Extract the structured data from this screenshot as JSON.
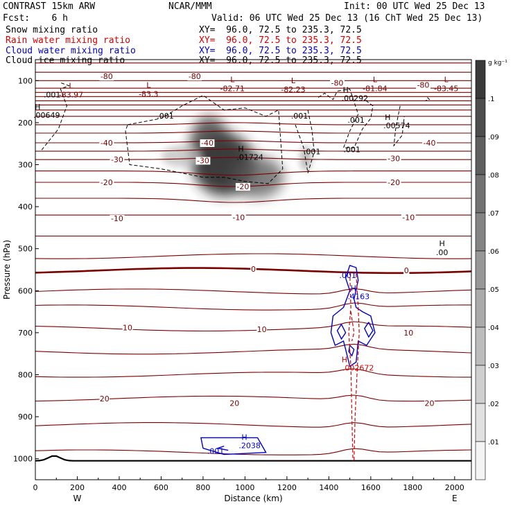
{
  "header": {
    "model": "CONTRAST 15km ARW",
    "org": "NCAR/MMM",
    "init": "Init: 00 UTC Wed 25 Dec 13",
    "fcst": "Fcst:    6 h",
    "valid": "Valid: 06 UTC Wed 25 Dec 13 (16 ChT Wed 25 Dec 13)",
    "fields": [
      {
        "name": "Snow mixing ratio",
        "xy": "XY=  96.0, 72.5 to 235.3, 72.5",
        "color": "#000000"
      },
      {
        "name": "Rain water mixing ratio",
        "xy": "XY=  96.0, 72.5 to 235.3, 72.5",
        "color": "#d80000"
      },
      {
        "name": "Cloud water mixing ratio",
        "xy": "XY=  96.0, 72.5 to 235.3, 72.5",
        "color": "#0000cc"
      },
      {
        "name": "Cloud ice mixing ratio",
        "xy": "XY=  96.0, 72.5 to 235.3, 72.5",
        "color": "#000000"
      }
    ]
  },
  "chart_data": {
    "type": "contour",
    "xlabel": "Distance (km)",
    "ylabel": "Pressure (hPa)",
    "xlim": [
      0,
      2080
    ],
    "ylim": [
      50,
      1050
    ],
    "xticks": [
      0,
      200,
      400,
      600,
      800,
      1000,
      1200,
      1400,
      1600,
      1800,
      2000
    ],
    "yticks": [
      100,
      200,
      300,
      400,
      500,
      600,
      700,
      800,
      900,
      1000
    ],
    "x_end_labels": {
      "left": "W",
      "right": "E"
    },
    "colorbar": {
      "unit": "g kg⁻¹",
      "levels": [
        ".01",
        ".02",
        ".03",
        ".04",
        ".05",
        ".06",
        ".07",
        ".08",
        ".09",
        ".1"
      ],
      "top_color": "#3a3a3a",
      "bottom_color": "#f4f4f4"
    },
    "temperature_contours": {
      "color": "#7a0000",
      "zero_color": "#7a0000",
      "labels": [
        {
          "x": 340,
          "p": 90,
          "text": "-80"
        },
        {
          "x": 760,
          "p": 90,
          "text": "-80"
        },
        {
          "x": 1440,
          "p": 105,
          "text": "-80"
        },
        {
          "x": 1850,
          "p": 110,
          "text": "-80"
        },
        {
          "x": 340,
          "p": 248,
          "text": "-40"
        },
        {
          "x": 820,
          "p": 248,
          "text": "-40"
        },
        {
          "x": 1880,
          "p": 248,
          "text": "-40"
        },
        {
          "x": 390,
          "p": 288,
          "text": "-30"
        },
        {
          "x": 800,
          "p": 290,
          "text": "-30"
        },
        {
          "x": 1710,
          "p": 285,
          "text": "-30"
        },
        {
          "x": 340,
          "p": 342,
          "text": "-20"
        },
        {
          "x": 990,
          "p": 352,
          "text": "-20"
        },
        {
          "x": 1710,
          "p": 342,
          "text": "-20"
        },
        {
          "x": 390,
          "p": 428,
          "text": "-10"
        },
        {
          "x": 970,
          "p": 425,
          "text": "-10"
        },
        {
          "x": 1780,
          "p": 425,
          "text": "-10"
        },
        {
          "x": 1040,
          "p": 548,
          "text": "0"
        },
        {
          "x": 1770,
          "p": 552,
          "text": "0"
        },
        {
          "x": 440,
          "p": 688,
          "text": "10"
        },
        {
          "x": 1080,
          "p": 692,
          "text": "10"
        },
        {
          "x": 1780,
          "p": 700,
          "text": "10"
        },
        {
          "x": 330,
          "p": 857,
          "text": "20"
        },
        {
          "x": 950,
          "p": 868,
          "text": "20"
        },
        {
          "x": 1880,
          "p": 868,
          "text": "20"
        }
      ],
      "extrema": [
        {
          "x": 170,
          "p": 135,
          "kind": "L",
          "value": "-83.97"
        },
        {
          "x": 540,
          "p": 133,
          "kind": "L",
          "value": "-83.3"
        },
        {
          "x": 940,
          "p": 120,
          "kind": "L",
          "value": "-82.71"
        },
        {
          "x": 1230,
          "p": 123,
          "kind": "L",
          "value": "-82.23"
        },
        {
          "x": 1620,
          "p": 120,
          "kind": "L",
          "value": "-81.84"
        },
        {
          "x": 1960,
          "p": 120,
          "kind": "L",
          "value": "-83.45"
        },
        {
          "x": 1940,
          "p": 510,
          "kind": "H",
          "value": ".00"
        }
      ]
    },
    "snow_labels": [
      {
        "x": 1000,
        "p": 285,
        "kind": "H",
        "value": ".01724"
      },
      {
        "x": 30,
        "p": 185,
        "kind": "H",
        "value": ".00649"
      },
      {
        "x": 1500,
        "p": 145,
        "kind": "H",
        "value": ".00292"
      },
      {
        "x": 1700,
        "p": 210,
        "kind": "H",
        "value": ".00574"
      }
    ],
    "ice_labels": [
      {
        "x": 80,
        "p": 140,
        "text": ".001"
      },
      {
        "x": 620,
        "p": 190,
        "text": ".001"
      },
      {
        "x": 1260,
        "p": 190,
        "text": ".001"
      },
      {
        "x": 1320,
        "p": 275,
        "text": ".001"
      },
      {
        "x": 1530,
        "p": 200,
        "text": ".001"
      },
      {
        "x": 1510,
        "p": 270,
        "text": ".001"
      }
    ],
    "cloud_water_labels": [
      {
        "x": 1530,
        "p": 620,
        "kind": "H",
        "value": ".4163"
      },
      {
        "x": 1010,
        "p": 975,
        "kind": "H",
        "value": ".2038"
      },
      {
        "x": 860,
        "p": 988,
        "text": ".001"
      },
      {
        "x": 1490,
        "p": 570,
        "text": ".001"
      }
    ],
    "rain_labels": [
      {
        "x": 1540,
        "p": 790,
        "kind": "H",
        "value": ".002672"
      }
    ]
  }
}
